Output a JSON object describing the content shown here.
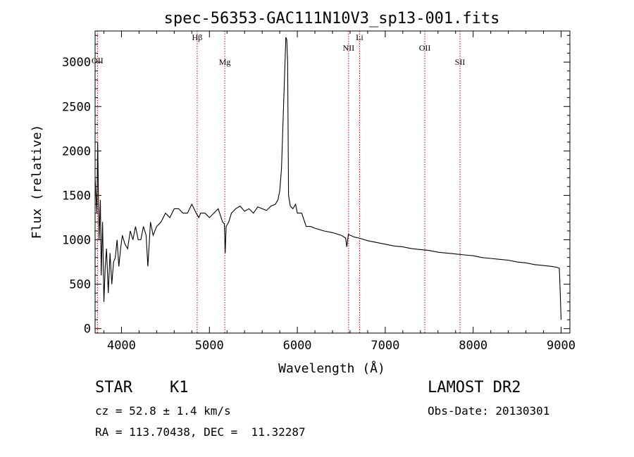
{
  "chart_data": {
    "type": "line",
    "title": "spec-56353-GAC111N10V3_sp13-001.fits",
    "xlabel": "Wavelength (Å)",
    "ylabel": "Flux (relative)",
    "xlim": [
      3700,
      9100
    ],
    "ylim": [
      -50,
      3350
    ],
    "xticks": [
      4000,
      5000,
      6000,
      7000,
      8000,
      9000
    ],
    "yticks": [
      0,
      500,
      1000,
      1500,
      2000,
      2500,
      3000
    ],
    "line_color": "#000000",
    "marker_color": "#cc0000",
    "grid": false,
    "series": [
      {
        "x": [
          3700,
          3720,
          3730,
          3745,
          3760,
          3770,
          3785,
          3800,
          3815,
          3830,
          3850,
          3870,
          3890,
          3910,
          3930,
          3950,
          3970,
          3990,
          4010,
          4040,
          4070,
          4100,
          4130,
          4160,
          4190,
          4220,
          4250,
          4280,
          4300,
          4330,
          4360,
          4400,
          4450,
          4500,
          4550,
          4600,
          4650,
          4700,
          4750,
          4800,
          4850,
          4880,
          4900,
          4950,
          5000,
          5050,
          5100,
          5150,
          5170,
          5180,
          5190,
          5220,
          5250,
          5300,
          5350,
          5400,
          5450,
          5500,
          5550,
          5600,
          5650,
          5700,
          5750,
          5780,
          5800,
          5820,
          5840,
          5860,
          5870,
          5880,
          5890,
          5900,
          5920,
          5950,
          5980,
          6000,
          6050,
          6100,
          6150,
          6200,
          6300,
          6400,
          6500,
          6550,
          6563,
          6580,
          6650,
          6700,
          6800,
          6900,
          7000,
          7100,
          7200,
          7300,
          7400,
          7500,
          7600,
          7700,
          7800,
          7900,
          8000,
          8100,
          8200,
          8300,
          8400,
          8500,
          8600,
          8700,
          8800,
          8900,
          8950,
          8980,
          8990,
          9000
        ],
        "y": [
          1700,
          1300,
          2100,
          1000,
          1450,
          600,
          1200,
          300,
          700,
          900,
          400,
          850,
          500,
          750,
          800,
          1000,
          700,
          900,
          1050,
          950,
          900,
          1100,
          1000,
          1150,
          1000,
          1000,
          1150,
          1050,
          700,
          1200,
          1050,
          1150,
          1200,
          1300,
          1250,
          1350,
          1350,
          1300,
          1300,
          1400,
          1300,
          1250,
          1300,
          1300,
          1250,
          1300,
          1350,
          1200,
          1180,
          850,
          1150,
          1200,
          1300,
          1350,
          1380,
          1320,
          1350,
          1300,
          1370,
          1350,
          1330,
          1380,
          1400,
          1450,
          1550,
          1800,
          2400,
          3000,
          3280,
          3250,
          3000,
          1500,
          1380,
          1350,
          1400,
          1300,
          1300,
          1150,
          1150,
          1130,
          1100,
          1080,
          1050,
          1020,
          920,
          1060,
          1030,
          1020,
          990,
          970,
          950,
          930,
          920,
          900,
          890,
          880,
          860,
          850,
          840,
          830,
          820,
          800,
          790,
          780,
          770,
          750,
          740,
          720,
          710,
          700,
          690,
          680,
          400,
          100
        ]
      }
    ],
    "line_markers": [
      {
        "label": "OII",
        "x": 3727
      },
      {
        "label": "Hβ",
        "x": 4861
      },
      {
        "label": "Mg",
        "x": 5175
      },
      {
        "label": "NII",
        "x": 6583
      },
      {
        "label": "Li",
        "x": 6708
      },
      {
        "label": "OII",
        "x": 7450
      },
      {
        "label": "SII",
        "x": 7850
      }
    ]
  },
  "info": {
    "object_class": "STAR",
    "subclass": "K1",
    "cz": "cz = 52.8 ± 1.4 km/s",
    "coords": "RA = 113.70438, DEC =  11.32287",
    "survey": "LAMOST DR2",
    "obs_date": "Obs-Date: 20130301"
  }
}
